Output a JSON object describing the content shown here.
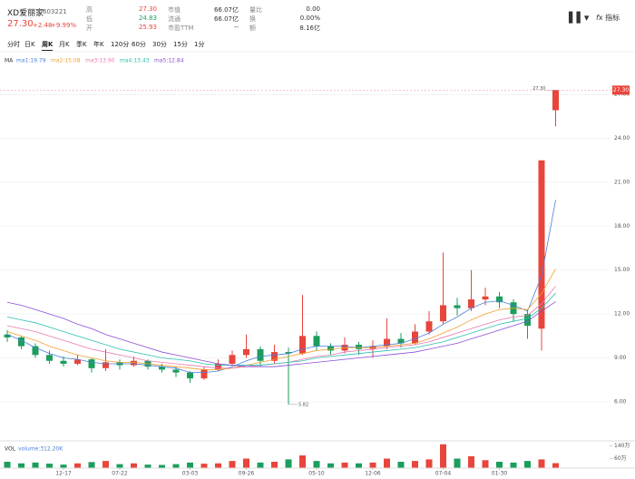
{
  "header": {
    "name": "XD爱丽家",
    "code": "603221",
    "price": "27.30",
    "change": "+2.48",
    "pct": "+9.99%",
    "stats": [
      [
        "高",
        "27.30"
      ],
      [
        "低",
        "24.83"
      ],
      [
        "开",
        "25.93"
      ],
      [
        "市值",
        "66.07亿"
      ],
      [
        "流通",
        "66.07亿"
      ],
      [
        "市盈TTM",
        "--"
      ],
      [
        "量比",
        "0.00"
      ],
      [
        "换",
        "0.00%"
      ],
      [
        "额",
        "8.16亿"
      ]
    ],
    "indicator": "指标"
  },
  "tabs": {
    "items": [
      "分时",
      "日K",
      "周K",
      "月K",
      "季K",
      "年K",
      "120分",
      "60分",
      "30分",
      "15分",
      "1分"
    ],
    "selected": 2
  },
  "chart_data": {
    "type": "candlestick",
    "ma_title": "MA",
    "up_color": "#e8453c",
    "down_color": "#1a9e5c",
    "grid": true,
    "categories": [
      null,
      null,
      null,
      null,
      "12-17",
      null,
      null,
      null,
      "07-22",
      null,
      null,
      null,
      null,
      "03-03",
      null,
      null,
      null,
      "09-26",
      null,
      null,
      null,
      null,
      "05-10",
      null,
      null,
      null,
      "12-06",
      null,
      null,
      null,
      null,
      "07-04",
      null,
      null,
      null,
      "01-30",
      null,
      null,
      null,
      null
    ],
    "candles": [
      {
        "open": 10.6,
        "high": 10.9,
        "low": 10.1,
        "close": 10.4
      },
      {
        "open": 10.4,
        "high": 10.5,
        "low": 9.6,
        "close": 9.8
      },
      {
        "open": 9.8,
        "high": 10.0,
        "low": 9.0,
        "close": 9.2
      },
      {
        "open": 9.2,
        "high": 9.5,
        "low": 8.6,
        "close": 8.8
      },
      {
        "open": 8.8,
        "high": 9.1,
        "low": 8.4,
        "close": 8.6
      },
      {
        "open": 8.6,
        "high": 9.2,
        "low": 8.5,
        "close": 8.9
      },
      {
        "open": 8.9,
        "high": 9.0,
        "low": 8.0,
        "close": 8.3
      },
      {
        "open": 8.3,
        "high": 9.6,
        "low": 8.1,
        "close": 8.7
      },
      {
        "open": 8.7,
        "high": 8.9,
        "low": 8.2,
        "close": 8.5
      },
      {
        "open": 8.5,
        "high": 9.1,
        "low": 8.4,
        "close": 8.8
      },
      {
        "open": 8.8,
        "high": 8.9,
        "low": 8.2,
        "close": 8.4
      },
      {
        "open": 8.4,
        "high": 8.6,
        "low": 8.0,
        "close": 8.2
      },
      {
        "open": 8.2,
        "high": 8.4,
        "low": 7.7,
        "close": 8.0
      },
      {
        "open": 8.0,
        "high": 8.1,
        "low": 7.3,
        "close": 7.6
      },
      {
        "open": 7.6,
        "high": 8.4,
        "low": 7.5,
        "close": 8.2
      },
      {
        "open": 8.2,
        "high": 8.9,
        "low": 8.1,
        "close": 8.6
      },
      {
        "open": 8.6,
        "high": 9.5,
        "low": 8.5,
        "close": 9.2
      },
      {
        "open": 9.2,
        "high": 10.6,
        "low": 9.0,
        "close": 9.6
      },
      {
        "open": 9.6,
        "high": 9.8,
        "low": 8.4,
        "close": 8.8
      },
      {
        "open": 8.8,
        "high": 9.9,
        "low": 8.6,
        "close": 9.4
      },
      {
        "open": 9.4,
        "high": 9.7,
        "low": 5.82,
        "close": 9.3
      },
      {
        "open": 9.3,
        "high": 13.3,
        "low": 9.2,
        "close": 10.5
      },
      {
        "open": 10.5,
        "high": 10.8,
        "low": 9.5,
        "close": 9.8
      },
      {
        "open": 9.8,
        "high": 10.0,
        "low": 9.2,
        "close": 9.5
      },
      {
        "open": 9.5,
        "high": 10.4,
        "low": 9.3,
        "close": 9.9
      },
      {
        "open": 9.9,
        "high": 10.1,
        "low": 9.2,
        "close": 9.6
      },
      {
        "open": 9.6,
        "high": 10.2,
        "low": 9.0,
        "close": 9.8
      },
      {
        "open": 9.8,
        "high": 11.7,
        "low": 9.6,
        "close": 10.3
      },
      {
        "open": 10.3,
        "high": 10.7,
        "low": 9.7,
        "close": 10.0
      },
      {
        "open": 10.0,
        "high": 11.3,
        "low": 9.9,
        "close": 10.8
      },
      {
        "open": 10.8,
        "high": 12.2,
        "low": 10.6,
        "close": 11.5
      },
      {
        "open": 11.5,
        "high": 16.2,
        "low": 11.3,
        "close": 12.6
      },
      {
        "open": 12.6,
        "high": 13.1,
        "low": 11.9,
        "close": 12.4
      },
      {
        "open": 12.4,
        "high": 15.0,
        "low": 12.2,
        "close": 13.0
      },
      {
        "open": 13.0,
        "high": 13.8,
        "low": 12.6,
        "close": 13.2
      },
      {
        "open": 13.2,
        "high": 13.5,
        "low": 12.4,
        "close": 12.8
      },
      {
        "open": 12.8,
        "high": 13.0,
        "low": 11.5,
        "close": 12.0
      },
      {
        "open": 12.0,
        "high": 12.3,
        "low": 10.3,
        "close": 11.2
      },
      {
        "open": 11.0,
        "high": 22.5,
        "low": 9.5,
        "close": 22.5
      },
      {
        "open": 25.93,
        "high": 27.3,
        "low": 24.83,
        "close": 27.3
      }
    ],
    "ma_series": [
      {
        "name": "ma1:19.79",
        "color": "#4a7fd8",
        "values": [
          10.6,
          10.2,
          9.7,
          9.3,
          9.0,
          8.9,
          8.7,
          8.6,
          8.6,
          8.6,
          8.5,
          8.4,
          8.3,
          8.0,
          8.0,
          8.1,
          8.4,
          8.8,
          9.1,
          9.2,
          9.3,
          9.6,
          9.8,
          9.8,
          9.8,
          9.7,
          9.8,
          9.9,
          10.0,
          10.3,
          10.7,
          11.3,
          11.8,
          12.4,
          12.8,
          12.9,
          12.6,
          12.2,
          14.6,
          19.79
        ]
      },
      {
        "name": "ma2:15.08",
        "color": "#f0a030",
        "values": [
          10.8,
          10.5,
          10.2,
          9.8,
          9.5,
          9.2,
          9.0,
          8.8,
          8.7,
          8.7,
          8.6,
          8.5,
          8.4,
          8.3,
          8.2,
          8.2,
          8.3,
          8.5,
          8.7,
          8.9,
          9.1,
          9.3,
          9.5,
          9.6,
          9.7,
          9.7,
          9.7,
          9.8,
          9.9,
          10.0,
          10.3,
          10.7,
          11.1,
          11.6,
          12.0,
          12.3,
          12.4,
          12.3,
          13.4,
          15.08
        ]
      },
      {
        "name": "ma3:13.90",
        "color": "#e87ab0",
        "values": [
          11.2,
          11.0,
          10.8,
          10.5,
          10.2,
          9.9,
          9.6,
          9.4,
          9.2,
          9.0,
          8.8,
          8.7,
          8.6,
          8.5,
          8.4,
          8.3,
          8.3,
          8.4,
          8.5,
          8.6,
          8.7,
          8.9,
          9.1,
          9.2,
          9.4,
          9.5,
          9.6,
          9.7,
          9.8,
          9.9,
          10.1,
          10.4,
          10.7,
          11.0,
          11.3,
          11.6,
          11.8,
          11.9,
          12.7,
          13.9
        ]
      },
      {
        "name": "ma4:13.43",
        "color": "#2cc0b0",
        "values": [
          11.8,
          11.6,
          11.4,
          11.1,
          10.8,
          10.5,
          10.2,
          9.9,
          9.6,
          9.4,
          9.2,
          9.0,
          8.9,
          8.8,
          8.6,
          8.5,
          8.5,
          8.5,
          8.5,
          8.6,
          8.7,
          8.8,
          9.0,
          9.1,
          9.2,
          9.3,
          9.4,
          9.5,
          9.6,
          9.7,
          9.9,
          10.1,
          10.4,
          10.7,
          11.0,
          11.3,
          11.5,
          11.7,
          12.4,
          13.43
        ]
      },
      {
        "name": "ma5:12.84",
        "color": "#8a4ed8",
        "values": [
          12.8,
          12.6,
          12.3,
          12.0,
          11.7,
          11.3,
          11.0,
          10.6,
          10.3,
          10.0,
          9.7,
          9.4,
          9.2,
          9.0,
          8.8,
          8.6,
          8.5,
          8.4,
          8.4,
          8.4,
          8.5,
          8.6,
          8.7,
          8.8,
          8.9,
          9.0,
          9.1,
          9.2,
          9.3,
          9.4,
          9.6,
          9.8,
          10.0,
          10.3,
          10.6,
          10.9,
          11.2,
          11.5,
          12.2,
          12.84
        ]
      }
    ],
    "ylim": [
      3.7,
      28.5
    ],
    "yticks": [
      {
        "value": 6,
        "label": "6.00"
      },
      {
        "value": 9,
        "label": "9.00"
      },
      {
        "value": 12,
        "label": "12.00"
      },
      {
        "value": 15,
        "label": "15.00"
      },
      {
        "value": 18,
        "label": "18.00"
      },
      {
        "value": 21,
        "label": "21.00"
      },
      {
        "value": 24,
        "label": "24.00"
      },
      {
        "value": 27,
        "label": "27.00"
      }
    ],
    "max_label": "27.30",
    "min_label": "5.82",
    "volume": {
      "title": "VOL",
      "legend": "volume:312.20K",
      "color_legend": "#4a7fd8",
      "values": [
        40,
        30,
        35,
        28,
        22,
        30,
        38,
        45,
        25,
        30,
        22,
        20,
        25,
        35,
        28,
        30,
        45,
        60,
        35,
        40,
        55,
        80,
        45,
        30,
        35,
        30,
        35,
        60,
        40,
        45,
        55,
        150,
        60,
        75,
        50,
        40,
        35,
        45,
        55,
        31.22
      ],
      "ylim": [
        0,
        160
      ],
      "yticks": [
        {
          "value": 140,
          "label": "140万"
        },
        {
          "value": 60,
          "label": "60万"
        }
      ]
    }
  }
}
